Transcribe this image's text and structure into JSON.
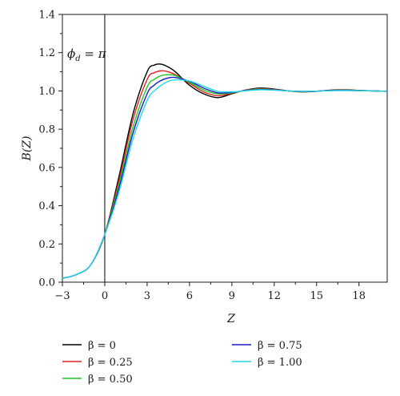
{
  "chart_data": {
    "type": "line",
    "title": "",
    "xlabel": "Z",
    "ylabel": "B(Z)",
    "xlim": [
      -3,
      20
    ],
    "ylim": [
      0.0,
      1.4
    ],
    "x_ticks": [
      "−3",
      "0",
      "3",
      "6",
      "9",
      "12",
      "15",
      "18"
    ],
    "y_ticks": [
      "0.0",
      "0.2",
      "0.4",
      "0.6",
      "0.8",
      "1.0",
      "1.2",
      "1.4"
    ],
    "annotation": "ϕd = π",
    "reference_line_x": 0,
    "grid": false,
    "legend_position": "bottom",
    "series": [
      {
        "name": "β = 0",
        "color": "#000000",
        "x": [
          -3,
          -2,
          -1,
          0,
          1,
          2,
          3,
          3.5,
          4,
          4.5,
          5,
          6,
          7,
          8,
          9,
          10,
          11,
          12,
          13,
          14,
          15,
          16,
          17,
          18,
          19,
          20
        ],
        "y": [
          0.02,
          0.04,
          0.09,
          0.25,
          0.55,
          0.88,
          1.1,
          1.135,
          1.14,
          1.125,
          1.1,
          1.03,
          0.985,
          0.965,
          0.985,
          1.005,
          1.015,
          1.01,
          1.0,
          0.995,
          0.998,
          1.004,
          1.006,
          1.003,
          1.0,
          0.998
        ]
      },
      {
        "name": "β = 0.25",
        "color": "#e02020",
        "x": [
          -3,
          -2,
          -1,
          0,
          1,
          2,
          3,
          3.5,
          4,
          4.5,
          5,
          6,
          7,
          8,
          9,
          10,
          11,
          12,
          13,
          14,
          15,
          16,
          17,
          18,
          19,
          20
        ],
        "y": [
          0.02,
          0.04,
          0.09,
          0.25,
          0.53,
          0.85,
          1.06,
          1.095,
          1.105,
          1.1,
          1.085,
          1.04,
          0.995,
          0.975,
          0.988,
          1.004,
          1.012,
          1.008,
          1.0,
          0.996,
          0.999,
          1.003,
          1.005,
          1.002,
          1.0,
          0.998
        ]
      },
      {
        "name": "β = 0.50",
        "color": "#22c422",
        "x": [
          -3,
          -2,
          -1,
          0,
          1,
          2,
          3,
          3.5,
          4,
          4.5,
          5,
          6,
          7,
          8,
          9,
          10,
          11,
          12,
          13,
          14,
          15,
          16,
          17,
          18,
          19,
          20
        ],
        "y": [
          0.02,
          0.04,
          0.09,
          0.25,
          0.51,
          0.81,
          1.02,
          1.06,
          1.08,
          1.085,
          1.08,
          1.045,
          1.005,
          0.985,
          0.99,
          1.003,
          1.01,
          1.006,
          1.0,
          0.997,
          0.999,
          1.002,
          1.004,
          1.002,
          1.0,
          0.998
        ]
      },
      {
        "name": "β = 0.75",
        "color": "#1a1acc",
        "x": [
          -3,
          -2,
          -1,
          0,
          1,
          2,
          3,
          3.5,
          4,
          4.5,
          5,
          6,
          7,
          8,
          9,
          10,
          11,
          12,
          13,
          14,
          15,
          16,
          17,
          18,
          19,
          20
        ],
        "y": [
          0.02,
          0.04,
          0.09,
          0.25,
          0.49,
          0.78,
          0.985,
          1.03,
          1.055,
          1.068,
          1.07,
          1.05,
          1.015,
          0.99,
          0.993,
          1.002,
          1.008,
          1.005,
          1.0,
          0.998,
          0.999,
          1.002,
          1.003,
          1.001,
          1.0,
          0.998
        ]
      },
      {
        "name": "β = 1.00",
        "color": "#22d8e8",
        "x": [
          -3,
          -2,
          -1,
          0,
          1,
          2,
          3,
          3.5,
          4,
          4.5,
          5,
          6,
          7,
          8,
          9,
          10,
          11,
          12,
          13,
          14,
          15,
          16,
          17,
          18,
          19,
          20
        ],
        "y": [
          0.02,
          0.04,
          0.09,
          0.25,
          0.47,
          0.75,
          0.95,
          1.0,
          1.03,
          1.05,
          1.058,
          1.052,
          1.025,
          0.998,
          0.995,
          1.001,
          1.006,
          1.004,
          1.0,
          0.998,
          0.999,
          1.001,
          1.002,
          1.001,
          1.0,
          0.998
        ]
      }
    ]
  }
}
